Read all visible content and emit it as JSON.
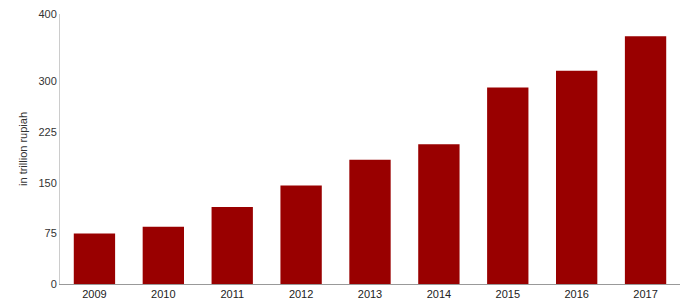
{
  "chart_data": {
    "type": "bar",
    "y_label": "in trillion rupiah",
    "categories": [
      "2009",
      "2010",
      "2011",
      "2012",
      "2013",
      "2014",
      "2015",
      "2016",
      "2017"
    ],
    "values": [
      75,
      85,
      114,
      146,
      184,
      207,
      291,
      316,
      367
    ],
    "color": "#990000",
    "ylim": [
      0,
      400
    ],
    "yticks": [
      0,
      75,
      150,
      225,
      300,
      400
    ],
    "grid": false
  }
}
